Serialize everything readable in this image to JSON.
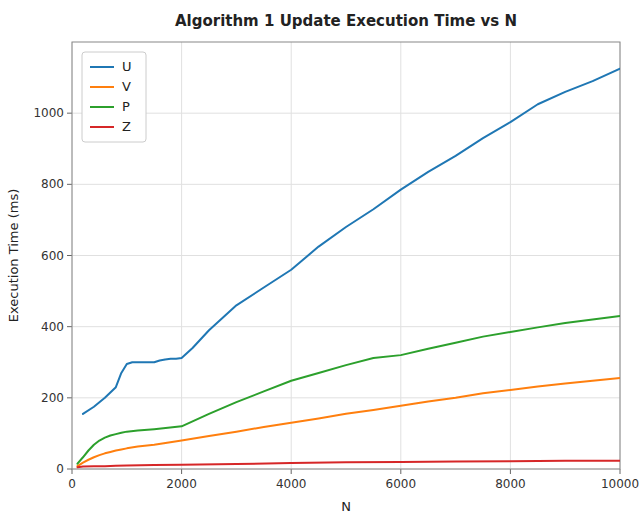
{
  "chart_data": {
    "type": "line",
    "title": "Algorithm 1 Update Execution Time vs N",
    "xlabel": "N",
    "ylabel": "Execution Time (ms)",
    "xlim": [
      0,
      10000
    ],
    "ylim": [
      0,
      1200
    ],
    "xticks": [
      0,
      2000,
      4000,
      6000,
      8000,
      10000
    ],
    "yticks": [
      0,
      200,
      400,
      600,
      800,
      1000
    ],
    "grid": true,
    "legend": "upper left",
    "series": [
      {
        "name": "U",
        "color": "#1f77b4",
        "x": [
          200,
          400,
          600,
          700,
          800,
          900,
          1000,
          1100,
          1200,
          1300,
          1400,
          1500,
          1600,
          1700,
          1800,
          1900,
          2000,
          2200,
          2500,
          3000,
          3500,
          4000,
          4500,
          5000,
          5500,
          6000,
          6500,
          7000,
          7500,
          8000,
          8500,
          9000,
          9500,
          10000
        ],
        "values": [
          155,
          175,
          200,
          215,
          230,
          270,
          295,
          300,
          300,
          300,
          300,
          300,
          305,
          308,
          310,
          310,
          312,
          340,
          390,
          460,
          510,
          560,
          625,
          680,
          730,
          785,
          835,
          880,
          930,
          975,
          1025,
          1060,
          1090,
          1125
        ]
      },
      {
        "name": "V",
        "color": "#ff7f0e",
        "x": [
          100,
          200,
          300,
          400,
          500,
          600,
          700,
          800,
          900,
          1000,
          1200,
          1500,
          2000,
          2500,
          3000,
          3500,
          4000,
          4500,
          5000,
          5500,
          6000,
          6500,
          7000,
          7500,
          8000,
          8500,
          9000,
          9500,
          10000
        ],
        "values": [
          8,
          18,
          26,
          33,
          39,
          44,
          48,
          52,
          55,
          58,
          63,
          68,
          80,
          93,
          105,
          118,
          130,
          142,
          155,
          166,
          178,
          190,
          200,
          213,
          222,
          232,
          240,
          248,
          256
        ]
      },
      {
        "name": "P",
        "color": "#2ca02c",
        "x": [
          100,
          200,
          300,
          400,
          500,
          600,
          700,
          800,
          900,
          1000,
          1200,
          1500,
          2000,
          2500,
          3000,
          3500,
          4000,
          4500,
          5000,
          5500,
          6000,
          6500,
          7000,
          7500,
          8000,
          8500,
          9000,
          9500,
          10000
        ],
        "values": [
          15,
          33,
          52,
          68,
          80,
          88,
          94,
          98,
          102,
          105,
          108,
          112,
          120,
          155,
          188,
          218,
          248,
          270,
          292,
          312,
          320,
          338,
          355,
          372,
          385,
          398,
          410,
          420,
          430
        ]
      },
      {
        "name": "Z",
        "color": "#d62728",
        "x": [
          100,
          200,
          400,
          600,
          800,
          1000,
          1500,
          2000,
          3000,
          4000,
          5000,
          6000,
          7000,
          8000,
          9000,
          10000
        ],
        "values": [
          5,
          7,
          8,
          8,
          9,
          10,
          11,
          12,
          14,
          17,
          19,
          20,
          21,
          22,
          23,
          23
        ]
      }
    ]
  }
}
